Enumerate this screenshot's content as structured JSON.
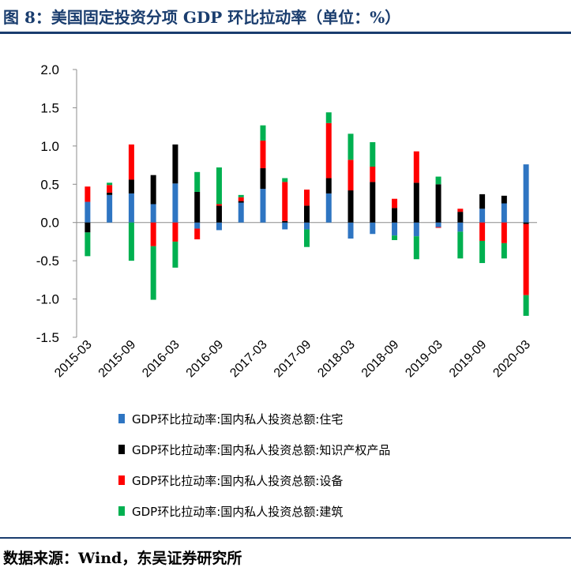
{
  "title": "图 8：美国固定投资分项 GDP 环比拉动率（单位：%）",
  "source": "数据来源：Wind，东吴证券研究所",
  "chart_data": {
    "type": "bar",
    "stacked": true,
    "title": "",
    "xlabel": "",
    "ylabel": "",
    "ylim": [
      -1.5,
      2.0
    ],
    "y_ticks": [
      "2.0",
      "1.5",
      "1.0",
      "0.5",
      "0.0",
      "-0.5",
      "-1.0",
      "-1.5"
    ],
    "grid": false,
    "legend_position": "bottom",
    "categories": [
      "2015-03",
      "2015-06",
      "2015-09",
      "2015-12",
      "2016-03",
      "2016-06",
      "2016-09",
      "2016-12",
      "2017-03",
      "2017-06",
      "2017-09",
      "2017-12",
      "2018-03",
      "2018-06",
      "2018-09",
      "2018-12",
      "2019-03",
      "2019-06",
      "2019-09",
      "2019-12",
      "2020-03"
    ],
    "x_tick_labels": [
      "2015-03",
      "2015-09",
      "2016-03",
      "2016-09",
      "2017-03",
      "2017-09",
      "2018-03",
      "2018-09",
      "2019-03",
      "2019-09",
      "2020-03"
    ],
    "series": [
      {
        "name": "GDP环比拉动率:国内私人投资总额:住宅",
        "color": "#2e75c2",
        "values": [
          0.27,
          0.36,
          0.38,
          0.24,
          0.51,
          -0.08,
          -0.1,
          0.26,
          0.44,
          -0.09,
          -0.09,
          0.38,
          -0.21,
          -0.15,
          -0.17,
          -0.18,
          -0.06,
          -0.12,
          0.18,
          0.25,
          0.76
        ]
      },
      {
        "name": "GDP环比拉动率:国内私人投资总额:知识产权产品",
        "color": "#000000",
        "values": [
          -0.13,
          0.03,
          0.18,
          0.38,
          0.51,
          0.4,
          0.22,
          0.02,
          0.27,
          0.02,
          0.22,
          0.2,
          0.42,
          0.53,
          0.19,
          0.52,
          0.5,
          0.14,
          0.19,
          0.1,
          -0.02
        ]
      },
      {
        "name": "GDP环比拉动率:国内私人投资总额:设备",
        "color": "#ff0000",
        "values": [
          0.2,
          0.1,
          0.46,
          -0.31,
          -0.25,
          -0.14,
          0.02,
          0.05,
          0.36,
          0.51,
          0.21,
          0.72,
          0.4,
          0.2,
          0.12,
          0.41,
          -0.01,
          0.04,
          -0.24,
          -0.27,
          -0.93
        ]
      },
      {
        "name": "GDP环比拉动率:国内私人投资总额:建筑",
        "color": "#00b050",
        "values": [
          -0.31,
          0.03,
          -0.5,
          -0.7,
          -0.34,
          0.26,
          0.48,
          0.03,
          0.2,
          0.05,
          -0.23,
          0.14,
          0.34,
          0.32,
          -0.06,
          -0.3,
          0.1,
          -0.35,
          -0.29,
          -0.2,
          -0.27
        ]
      }
    ]
  }
}
